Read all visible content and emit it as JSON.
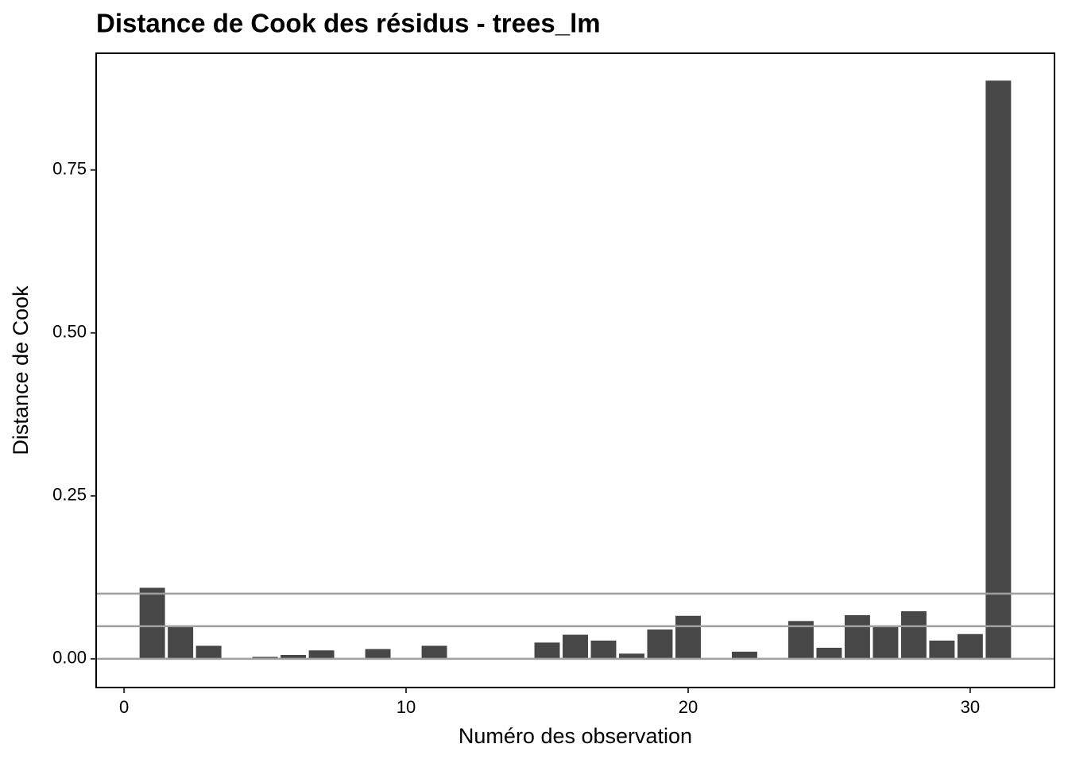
{
  "chart_data": {
    "type": "bar",
    "title": "Distance de Cook des résidus - trees_lm",
    "x_label": "Numéro des observation",
    "y_label": "Distance de Cook",
    "x": [
      1,
      2,
      3,
      4,
      5,
      6,
      7,
      8,
      9,
      10,
      11,
      12,
      13,
      14,
      15,
      16,
      17,
      18,
      19,
      20,
      21,
      22,
      23,
      24,
      25,
      26,
      27,
      28,
      29,
      30,
      31
    ],
    "values": [
      0.109,
      0.05,
      0.02,
      0,
      0.003,
      0.006,
      0.013,
      0,
      0.015,
      0,
      0.02,
      0,
      0,
      0,
      0.025,
      0.037,
      0.028,
      0.008,
      0.045,
      0.066,
      0,
      0.011,
      0,
      0.058,
      0.017,
      0.067,
      0.049,
      0.073,
      0.028,
      0.038,
      0.887
    ],
    "color": "#474747",
    "hlines": [
      0,
      0.05,
      0.1
    ],
    "hline_color": "#a0a0a0",
    "xlim": [
      -0.99,
      32.99
    ],
    "xticks": [
      0,
      10,
      20,
      30
    ],
    "ylim": [
      -0.044,
      0.929
    ],
    "yticks": [
      {
        "value": 0,
        "label": "0.00"
      },
      0.25,
      {
        "value": 0.5,
        "label": "0.50"
      },
      0.75
    ],
    "grid": false
  }
}
